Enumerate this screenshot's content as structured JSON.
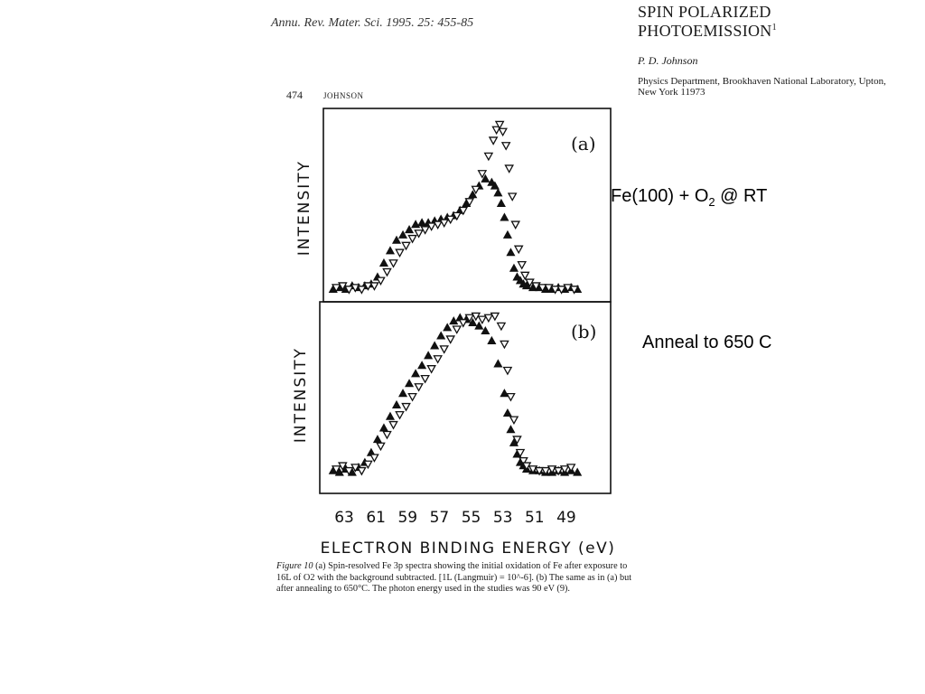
{
  "header": {
    "journal": "Annu. Rev. Mater. Sci. 1995. 25: 455-85",
    "title_line1": "SPIN POLARIZED",
    "title_line2": "PHOTOEMISSION",
    "title_sup": "1",
    "author": "P. D. Johnson",
    "affil_line1": "Physics Department, Brookhaven National Laboratory, Upton,",
    "affil_line2": "New York 11973",
    "page_number": "474",
    "running_head": "JOHNSON"
  },
  "annotations": {
    "a_pre": "Fe(100) + O",
    "a_sub": "2",
    "a_post": " @ RT",
    "b": "Anneal to 650 C"
  },
  "caption": {
    "fig": "Figure 10",
    "text": "(a) Spin-resolved Fe 3p spectra showing the initial oxidation of Fe after exposure to 16L of O2 with the background subtracted. [1L (Langmuir) = 10^-6]. (b) The same as in (a) but after annealing to 650°C. The photon energy used in the studies was 90 eV (9)."
  },
  "chart_data": {
    "type": "scatter",
    "xlabel": "ELECTRON BINDING ENERGY (eV)",
    "x_ticks": [
      63,
      61,
      59,
      57,
      55,
      53,
      51,
      49
    ],
    "xlim": [
      64.2,
      47.0
    ],
    "x_reversed": true,
    "ylim": [
      0,
      1
    ],
    "grid": false,
    "legend": "none",
    "marker_color": "#111111",
    "panels": [
      {
        "label": "(a)",
        "ylabel": "INTENSITY",
        "series": [
          {
            "marker": "triangle-up",
            "x": [
              63.7,
              63.3,
              62.9,
              62.5,
              62.1,
              61.7,
              61.3,
              60.9,
              60.5,
              60.1,
              59.7,
              59.3,
              58.9,
              58.5,
              58.1,
              57.7,
              57.3,
              56.9,
              56.5,
              56.1,
              55.7,
              55.3,
              54.9,
              54.5,
              54.1,
              53.7,
              53.5,
              53.3,
              53.1,
              52.9,
              52.7,
              52.5,
              52.3,
              52.1,
              51.9,
              51.7,
              51.5,
              51.1,
              50.7,
              50.3,
              49.9,
              49.5,
              49.1,
              48.7,
              48.3
            ],
            "y": [
              0.03,
              0.04,
              0.03,
              0.05,
              0.04,
              0.05,
              0.06,
              0.1,
              0.18,
              0.25,
              0.31,
              0.34,
              0.37,
              0.4,
              0.41,
              0.41,
              0.42,
              0.43,
              0.44,
              0.45,
              0.48,
              0.52,
              0.57,
              0.62,
              0.66,
              0.64,
              0.62,
              0.58,
              0.52,
              0.44,
              0.34,
              0.24,
              0.15,
              0.1,
              0.08,
              0.06,
              0.05,
              0.04,
              0.04,
              0.03,
              0.03,
              0.04,
              0.03,
              0.04,
              0.03
            ]
          },
          {
            "marker": "triangle-down",
            "x": [
              63.5,
              63.1,
              62.7,
              62.3,
              61.9,
              61.5,
              61.1,
              60.7,
              60.3,
              59.9,
              59.5,
              59.1,
              58.7,
              58.3,
              57.9,
              57.5,
              57.1,
              56.7,
              56.3,
              55.9,
              55.5,
              55.1,
              54.7,
              54.3,
              53.9,
              53.6,
              53.4,
              53.2,
              53.0,
              52.8,
              52.6,
              52.4,
              52.2,
              52.0,
              51.8,
              51.6,
              51.3,
              50.9,
              50.5,
              50.1,
              49.7,
              49.3,
              48.9,
              48.5
            ],
            "y": [
              0.04,
              0.05,
              0.03,
              0.04,
              0.03,
              0.05,
              0.05,
              0.08,
              0.13,
              0.18,
              0.24,
              0.28,
              0.32,
              0.35,
              0.37,
              0.39,
              0.4,
              0.41,
              0.43,
              0.45,
              0.48,
              0.53,
              0.6,
              0.69,
              0.79,
              0.88,
              0.94,
              0.97,
              0.93,
              0.85,
              0.72,
              0.56,
              0.4,
              0.26,
              0.17,
              0.11,
              0.07,
              0.05,
              0.04,
              0.04,
              0.03,
              0.03,
              0.04,
              0.03
            ]
          }
        ]
      },
      {
        "label": "(b)",
        "ylabel": "INTENSITY",
        "series": [
          {
            "marker": "triangle-up",
            "x": [
              63.7,
              63.3,
              62.9,
              62.5,
              62.1,
              61.7,
              61.3,
              60.9,
              60.5,
              60.1,
              59.7,
              59.3,
              58.9,
              58.5,
              58.1,
              57.7,
              57.3,
              56.9,
              56.5,
              56.1,
              55.7,
              55.3,
              54.9,
              54.5,
              54.1,
              53.7,
              53.3,
              52.9,
              52.7,
              52.5,
              52.3,
              52.1,
              51.9,
              51.7,
              51.5,
              51.1,
              50.7,
              50.3,
              49.9,
              49.5,
              49.1,
              48.7,
              48.3
            ],
            "y": [
              0.05,
              0.04,
              0.06,
              0.04,
              0.07,
              0.1,
              0.16,
              0.24,
              0.31,
              0.38,
              0.45,
              0.52,
              0.58,
              0.64,
              0.69,
              0.75,
              0.81,
              0.87,
              0.92,
              0.96,
              0.98,
              0.97,
              0.95,
              0.93,
              0.9,
              0.84,
              0.7,
              0.52,
              0.4,
              0.3,
              0.22,
              0.15,
              0.1,
              0.08,
              0.06,
              0.05,
              0.05,
              0.04,
              0.04,
              0.05,
              0.04,
              0.05,
              0.04
            ]
          },
          {
            "marker": "triangle-down",
            "x": [
              63.5,
              63.1,
              62.7,
              62.3,
              61.9,
              61.5,
              61.1,
              60.7,
              60.3,
              59.9,
              59.5,
              59.1,
              58.7,
              58.3,
              57.9,
              57.5,
              57.1,
              56.7,
              56.3,
              55.9,
              55.5,
              55.1,
              54.7,
              54.3,
              53.9,
              53.5,
              53.1,
              52.9,
              52.7,
              52.5,
              52.3,
              52.1,
              51.9,
              51.7,
              51.5,
              51.1,
              50.7,
              50.3,
              49.9,
              49.5,
              49.1,
              48.7
            ],
            "y": [
              0.06,
              0.08,
              0.05,
              0.07,
              0.05,
              0.09,
              0.13,
              0.2,
              0.27,
              0.33,
              0.39,
              0.44,
              0.5,
              0.56,
              0.61,
              0.67,
              0.73,
              0.79,
              0.85,
              0.91,
              0.95,
              0.98,
              0.99,
              0.97,
              0.98,
              0.99,
              0.93,
              0.82,
              0.66,
              0.5,
              0.36,
              0.24,
              0.16,
              0.11,
              0.08,
              0.06,
              0.05,
              0.05,
              0.06,
              0.05,
              0.06,
              0.07
            ]
          }
        ]
      }
    ]
  }
}
